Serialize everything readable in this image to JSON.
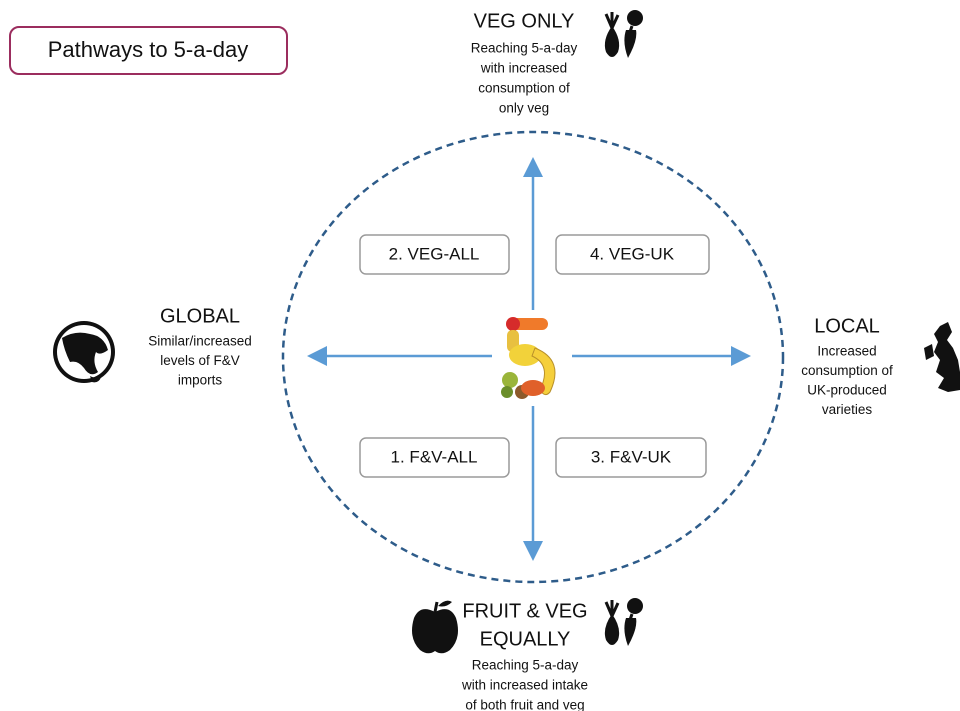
{
  "title": "Pathways to 5-a-day",
  "top": {
    "heading": [
      "VEG ONLY"
    ],
    "description": [
      "Reaching 5-a-day",
      "with increased",
      "consumption of",
      "only veg"
    ]
  },
  "left": {
    "heading": [
      "GLOBAL"
    ],
    "description": [
      "Similar/increased",
      "levels of F&V",
      "imports"
    ]
  },
  "right": {
    "heading": [
      "LOCAL"
    ],
    "description": [
      "Increased",
      "consumption of",
      "UK-produced",
      "varieties"
    ]
  },
  "bottom": {
    "heading": [
      "FRUIT & VEG",
      "EQUALLY"
    ],
    "description": [
      "Reaching 5-a-day",
      "with increased intake",
      "of both fruit and veg"
    ]
  },
  "quadrants": [
    "2. VEG-ALL",
    "4. VEG-UK",
    "1. F&V-ALL",
    "3. F&V-UK"
  ]
}
